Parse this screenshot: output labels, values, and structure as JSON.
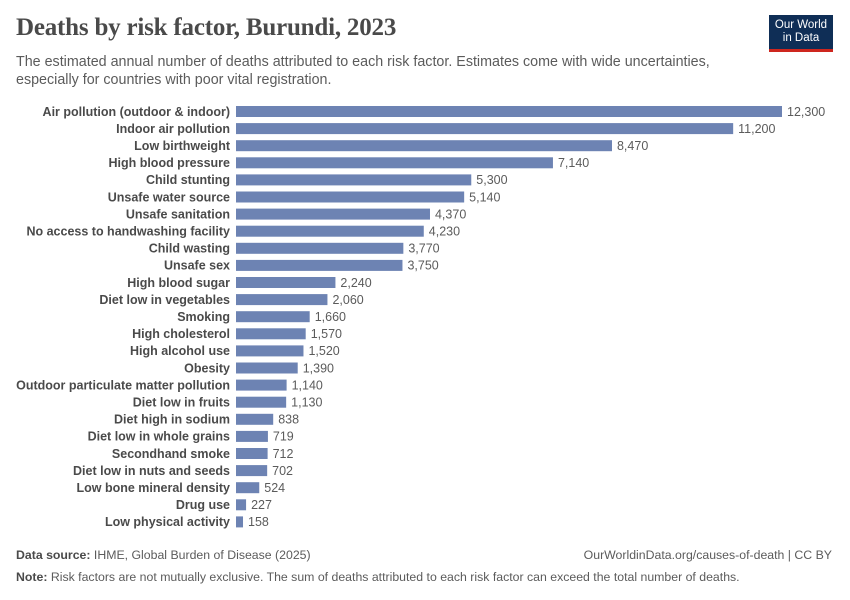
{
  "header": {
    "title": "Deaths by risk factor, Burundi, 2023",
    "subtitle": "The estimated annual number of deaths attributed to each risk factor. Estimates come with wide uncertainties, especially for countries with poor vital registration."
  },
  "logo": {
    "line1": "Our World",
    "line2": "in Data"
  },
  "footer": {
    "source_label": "Data source:",
    "source_text": "IHME, Global Burden of Disease (2025)",
    "license": "OurWorldinData.org/causes-of-death | CC BY",
    "note_label": "Note:",
    "note_text": "Risk factors are not mutually exclusive. The sum of deaths attributed to each risk factor can exceed the total number of deaths."
  },
  "colors": {
    "bar": "#6d83b3",
    "logo_bg": "#0f2e56",
    "logo_accent": "#ce261e"
  },
  "chart_data": {
    "type": "bar",
    "orientation": "horizontal",
    "title": "Deaths by risk factor, Burundi, 2023",
    "categories": [
      "Air pollution (outdoor & indoor)",
      "Indoor air pollution",
      "Low birthweight",
      "High blood pressure",
      "Child stunting",
      "Unsafe water source",
      "Unsafe sanitation",
      "No access to handwashing facility",
      "Child wasting",
      "Unsafe sex",
      "High blood sugar",
      "Diet low in vegetables",
      "Smoking",
      "High cholesterol",
      "High alcohol use",
      "Obesity",
      "Outdoor particulate matter pollution",
      "Diet low in fruits",
      "Diet high in sodium",
      "Diet low in whole grains",
      "Secondhand smoke",
      "Diet low in nuts and seeds",
      "Low bone mineral density",
      "Drug use",
      "Low physical activity"
    ],
    "values": [
      12300,
      11200,
      8470,
      7140,
      5300,
      5140,
      4370,
      4230,
      3770,
      3750,
      2240,
      2060,
      1660,
      1570,
      1520,
      1390,
      1140,
      1130,
      838,
      719,
      712,
      702,
      524,
      227,
      158
    ],
    "value_labels": [
      "12,300",
      "11,200",
      "8,470",
      "7,140",
      "5,300",
      "5,140",
      "4,370",
      "4,230",
      "3,770",
      "3,750",
      "2,240",
      "2,060",
      "1,660",
      "1,570",
      "1,520",
      "1,390",
      "1,140",
      "1,130",
      "838",
      "719",
      "712",
      "702",
      "524",
      "227",
      "158"
    ],
    "xlim": [
      0,
      12300
    ],
    "grid": false,
    "legend": "none"
  }
}
